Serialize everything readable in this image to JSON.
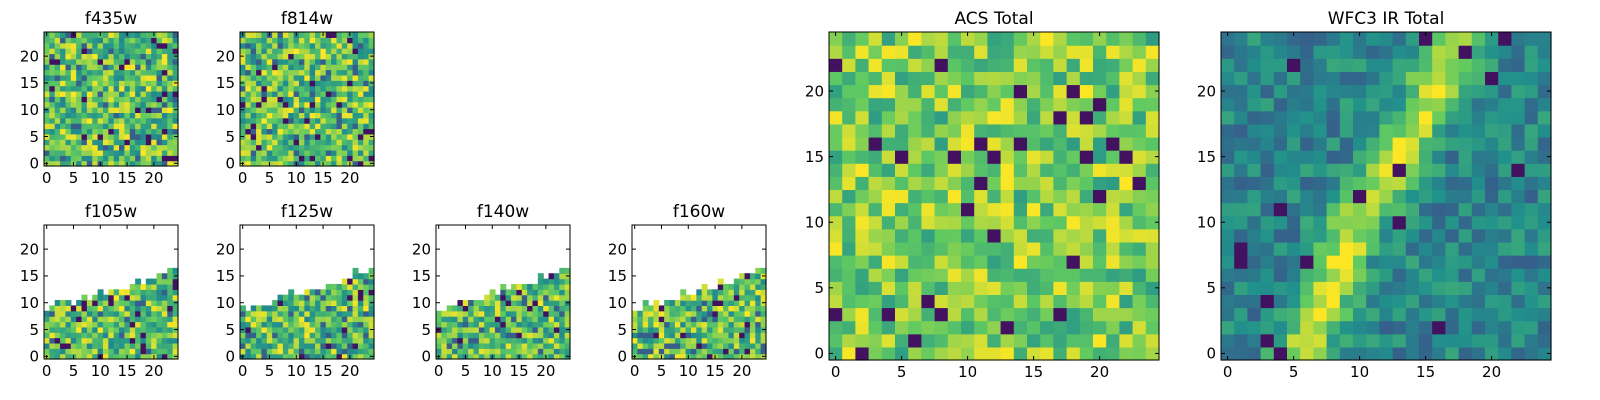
{
  "figure": {
    "background": "#ffffff",
    "colormap": "viridis",
    "colormap_stops": [
      "#440154",
      "#3b528b",
      "#21918c",
      "#5ec962",
      "#fde725"
    ]
  },
  "chart_data": [
    {
      "type": "heatmap",
      "title": "f435w",
      "grid": false,
      "xlim": [
        0,
        25
      ],
      "ylim": [
        0,
        25
      ],
      "xticks": [
        0,
        5,
        10,
        15,
        20
      ],
      "yticks": [
        0,
        5,
        10,
        15,
        20
      ],
      "pattern": "noise",
      "mask": "none"
    },
    {
      "type": "heatmap",
      "title": "f814w",
      "grid": false,
      "xlim": [
        0,
        25
      ],
      "ylim": [
        0,
        25
      ],
      "xticks": [
        0,
        5,
        10,
        15,
        20
      ],
      "yticks": [
        0,
        5,
        10,
        15,
        20
      ],
      "pattern": "noise",
      "mask": "none"
    },
    {
      "type": "heatmap",
      "title": "f105w",
      "grid": false,
      "xlim": [
        0,
        25
      ],
      "ylim": [
        0,
        25
      ],
      "xticks": [
        0,
        5,
        10,
        15,
        20
      ],
      "yticks": [
        0,
        5,
        10,
        15,
        20
      ],
      "pattern": "noise",
      "mask": "diagonal",
      "coverage_edge": [
        [
          0,
          9
        ],
        [
          5,
          10
        ],
        [
          10,
          12
        ],
        [
          15,
          13
        ],
        [
          20,
          15
        ],
        [
          25,
          17
        ]
      ]
    },
    {
      "type": "heatmap",
      "title": "f125w",
      "grid": false,
      "xlim": [
        0,
        25
      ],
      "ylim": [
        0,
        25
      ],
      "xticks": [
        0,
        5,
        10,
        15,
        20
      ],
      "yticks": [
        0,
        5,
        10,
        15,
        20
      ],
      "pattern": "noise",
      "mask": "diagonal",
      "coverage_edge": [
        [
          0,
          9
        ],
        [
          5,
          10
        ],
        [
          10,
          12
        ],
        [
          15,
          13
        ],
        [
          20,
          15
        ],
        [
          25,
          17
        ]
      ]
    },
    {
      "type": "heatmap",
      "title": "f140w",
      "grid": false,
      "xlim": [
        0,
        25
      ],
      "ylim": [
        0,
        25
      ],
      "xticks": [
        0,
        5,
        10,
        15,
        20
      ],
      "yticks": [
        0,
        5,
        10,
        15,
        20
      ],
      "pattern": "noise",
      "mask": "diagonal",
      "coverage_edge": [
        [
          0,
          9
        ],
        [
          5,
          10
        ],
        [
          10,
          12
        ],
        [
          15,
          13
        ],
        [
          20,
          15
        ],
        [
          25,
          17
        ]
      ]
    },
    {
      "type": "heatmap",
      "title": "f160w",
      "grid": false,
      "xlim": [
        0,
        25
      ],
      "ylim": [
        0,
        25
      ],
      "xticks": [
        0,
        5,
        10,
        15,
        20
      ],
      "yticks": [
        0,
        5,
        10,
        15,
        20
      ],
      "pattern": "noise",
      "mask": "diagonal",
      "coverage_edge": [
        [
          0,
          9
        ],
        [
          5,
          10
        ],
        [
          10,
          12
        ],
        [
          15,
          13
        ],
        [
          20,
          15
        ],
        [
          25,
          17
        ]
      ]
    },
    {
      "type": "heatmap",
      "title": "ACS Total",
      "grid": false,
      "xlim": [
        0,
        25
      ],
      "ylim": [
        0,
        25
      ],
      "xticks": [
        0,
        5,
        10,
        15,
        20
      ],
      "yticks": [
        0,
        5,
        10,
        15,
        20
      ],
      "pattern": "noise-bright",
      "mask": "none"
    },
    {
      "type": "heatmap",
      "title": "WFC3 IR Total",
      "grid": false,
      "xlim": [
        0,
        25
      ],
      "ylim": [
        0,
        25
      ],
      "xticks": [
        0,
        5,
        10,
        15,
        20
      ],
      "yticks": [
        0,
        5,
        10,
        15,
        20
      ],
      "pattern": "diagonal-band",
      "mask": "none",
      "band_path": [
        [
          6,
          0
        ],
        [
          10,
          10
        ],
        [
          15,
          18
        ],
        [
          18,
          25
        ]
      ]
    }
  ]
}
